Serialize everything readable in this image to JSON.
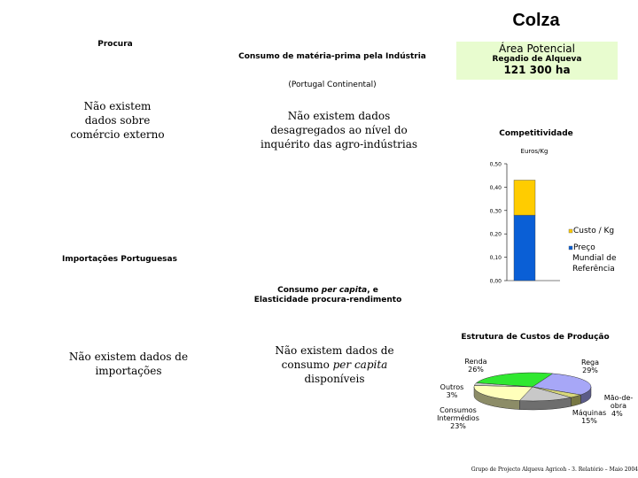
{
  "page_title": "Colza",
  "area": {
    "title": "Área Potencial",
    "subtitle": "Regadio de Alqueva",
    "value": "121 300 ha"
  },
  "procura": {
    "heading": "Procura",
    "text": "Não existem dados sobre comércio externo"
  },
  "consumo_mp": {
    "heading": "Consumo de matéria-prima pela Indústria",
    "region": "(Portugal Continental)",
    "text": "Não existem dados desagregados ao nível do inquérito das agro-indústrias"
  },
  "importacoes": {
    "heading": "Importações Portuguesas",
    "text": "Não existem dados de importações"
  },
  "consumo_pc": {
    "heading_a": "Consumo ",
    "heading_em": "per capita",
    "heading_b": ", e",
    "heading_2": "Elasticidade procura-rendimento",
    "text_a": "Não existem dados de consumo ",
    "text_em": "per capita",
    "text_b": " disponíveis"
  },
  "footer": "Grupo de Projecto Alqueva Agricoh - 3. Relatório – Maio 2004",
  "chart_data": [
    {
      "type": "bar",
      "title": "Competitividade",
      "ylabel": "Euros/Kg",
      "ylim": [
        0,
        0.5
      ],
      "yticks": [
        "0,00",
        "0,10",
        "0,20",
        "0,30",
        "0,40",
        "0,50"
      ],
      "categories": [
        ""
      ],
      "stacked": true,
      "series": [
        {
          "name": "Preço Mundial de Referência",
          "values": [
            0.28
          ],
          "color": "#0a5fd6"
        },
        {
          "name": "Custo / Kg",
          "values": [
            0.15
          ],
          "color": "#ffcc00"
        }
      ],
      "legend": [
        {
          "label": "Custo / Kg",
          "color": "#ffcc00"
        },
        {
          "label_lines": [
            "Preço",
            "Mundial de",
            "Referência"
          ],
          "color": "#0a5fd6"
        }
      ],
      "grid": false
    },
    {
      "type": "pie",
      "title": "Estrutura de Custos de Produção",
      "slices": [
        {
          "label": "Rega",
          "value": 29,
          "pct": "29%",
          "color": "#a7a7f7"
        },
        {
          "label": "Mão-de-obra",
          "label_lines": [
            "Mão-de-",
            "obra"
          ],
          "value": 4,
          "pct": "4%",
          "color": "#d8d87a"
        },
        {
          "label": "Máquinas",
          "value": 15,
          "pct": "15%",
          "color": "#c8c8c8"
        },
        {
          "label": "Consumos Intermédios",
          "label_lines": [
            "Consumos",
            "Intermédios"
          ],
          "value": 23,
          "pct": "23%",
          "color": "#ffffbb"
        },
        {
          "label": "Outros",
          "value": 3,
          "pct": "3%",
          "color": "#c9c9c9"
        },
        {
          "label": "Renda",
          "value": 26,
          "pct": "26%",
          "color": "#30e830"
        }
      ]
    }
  ]
}
